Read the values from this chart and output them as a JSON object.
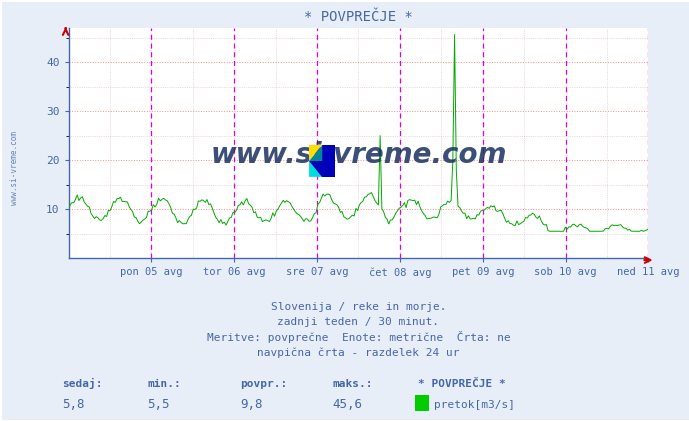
{
  "title": "* POVPREČJE *",
  "bg_color": "#e8eef8",
  "plot_bg_color": "#ffffff",
  "line_color": "#00aa00",
  "grid_color_major": "#ff8888",
  "grid_color_minor": "#ddbbbb",
  "vline_color": "#dd00dd",
  "axis_color": "#4466aa",
  "text_color": "#4466aa",
  "ylabel_left": "",
  "ylim": [
    0,
    47
  ],
  "yticks": [
    10,
    20,
    30,
    40
  ],
  "xlabel_days": [
    "pon 05 avg",
    "tor 06 avg",
    "sre 07 avg",
    "čet 08 avg",
    "pet 09 avg",
    "sob 10 avg",
    "ned 11 avg"
  ],
  "subtitle1": "Slovenija / reke in morje.",
  "subtitle2": "zadnji teden / 30 minut.",
  "subtitle3": "Meritve: povprečne  Enote: metrične  Črta: ne",
  "subtitle4": "navpična črta - razdelek 24 ur",
  "footer_labels": [
    "sedaj:",
    "min.:",
    "povpr.:",
    "maks.:",
    "* POVPREČJE *"
  ],
  "footer_values": [
    "5,8",
    "5,5",
    "9,8",
    "45,6",
    "pretok[m3/s]"
  ],
  "legend_color": "#00cc00",
  "watermark": "www.si-vreme.com",
  "watermark_color": "#1a3060",
  "num_points": 336,
  "logo_colors": {
    "yellow": "#ffdd00",
    "cyan": "#00dddd",
    "blue": "#0000cc",
    "teal": "#008899"
  }
}
